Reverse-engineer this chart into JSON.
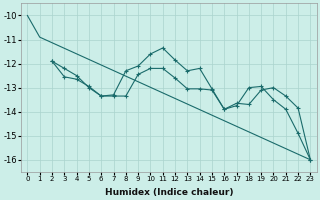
{
  "xlabel": "Humidex (Indice chaleur)",
  "ylabel": "",
  "xlim": [
    -0.5,
    23.5
  ],
  "ylim": [
    -16.5,
    -9.5
  ],
  "yticks": [
    -16,
    -15,
    -14,
    -13,
    -12,
    -11,
    -10
  ],
  "xticks": [
    0,
    1,
    2,
    3,
    4,
    5,
    6,
    7,
    8,
    9,
    10,
    11,
    12,
    13,
    14,
    15,
    16,
    17,
    18,
    19,
    20,
    21,
    22,
    23
  ],
  "bg_color": "#cceee8",
  "grid_color": "#aad4ce",
  "line_color": "#1a6b6b",
  "line1_no_marker": {
    "x": [
      0,
      1,
      23
    ],
    "y": [
      -10.0,
      -10.9,
      -16.0
    ]
  },
  "line2_with_marker": {
    "x": [
      2,
      3,
      4,
      5,
      6,
      7,
      8,
      9,
      10,
      11,
      12,
      13,
      14,
      15,
      16,
      17,
      18,
      19,
      20,
      21,
      22,
      23
    ],
    "y": [
      -11.9,
      -12.2,
      -12.5,
      -13.0,
      -13.35,
      -13.3,
      -12.3,
      -12.1,
      -11.6,
      -11.35,
      -11.85,
      -12.3,
      -12.2,
      -13.05,
      -13.9,
      -13.65,
      -13.7,
      -13.1,
      -13.0,
      -13.35,
      -13.85,
      -16.0
    ]
  },
  "line3_with_marker": {
    "x": [
      2,
      3,
      4,
      5,
      6,
      7,
      8,
      9,
      10,
      11,
      12,
      13,
      14,
      15,
      16,
      17,
      18,
      19,
      20,
      21,
      22,
      23
    ],
    "y": [
      -11.9,
      -12.55,
      -12.65,
      -12.95,
      -13.35,
      -13.35,
      -13.35,
      -12.45,
      -12.2,
      -12.2,
      -12.6,
      -13.05,
      -13.05,
      -13.1,
      -13.9,
      -13.75,
      -13.0,
      -12.95,
      -13.5,
      -13.9,
      -14.9,
      -16.0
    ]
  }
}
